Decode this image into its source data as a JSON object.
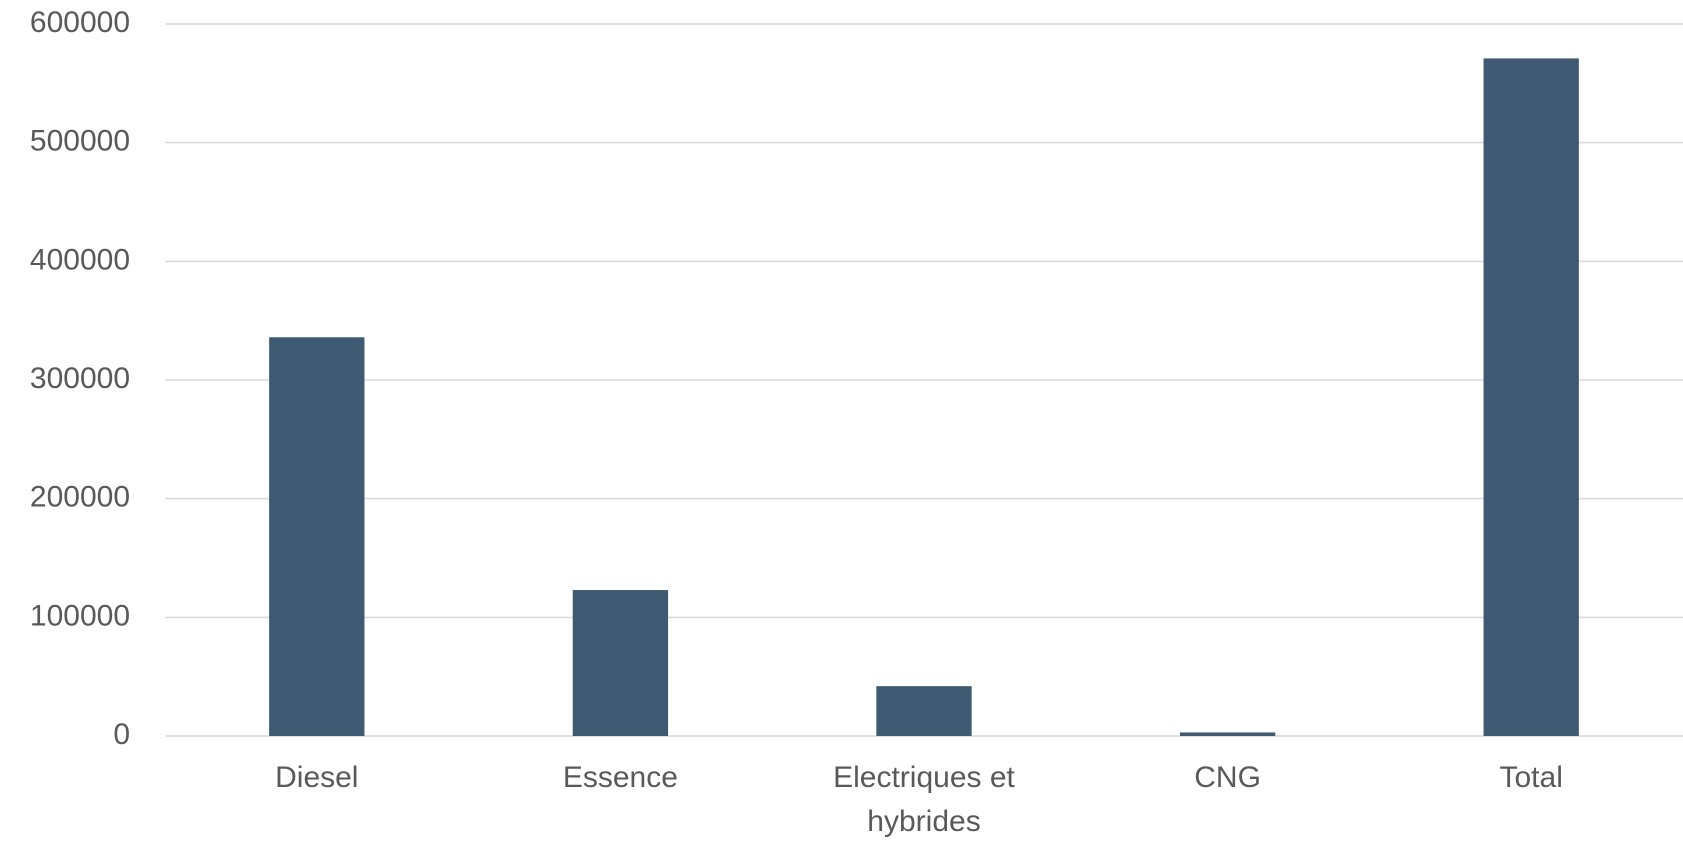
{
  "chart_data": {
    "type": "bar",
    "categories": [
      "Diesel",
      "Essence",
      "Electriques et hybrides",
      "CNG",
      "Total"
    ],
    "values": [
      336000,
      123000,
      42000,
      3000,
      571000
    ],
    "color": "#3f5a73",
    "ylim": [
      0,
      600000
    ],
    "yticks": [
      0,
      100000,
      200000,
      300000,
      400000,
      500000,
      600000
    ],
    "grid": true
  }
}
